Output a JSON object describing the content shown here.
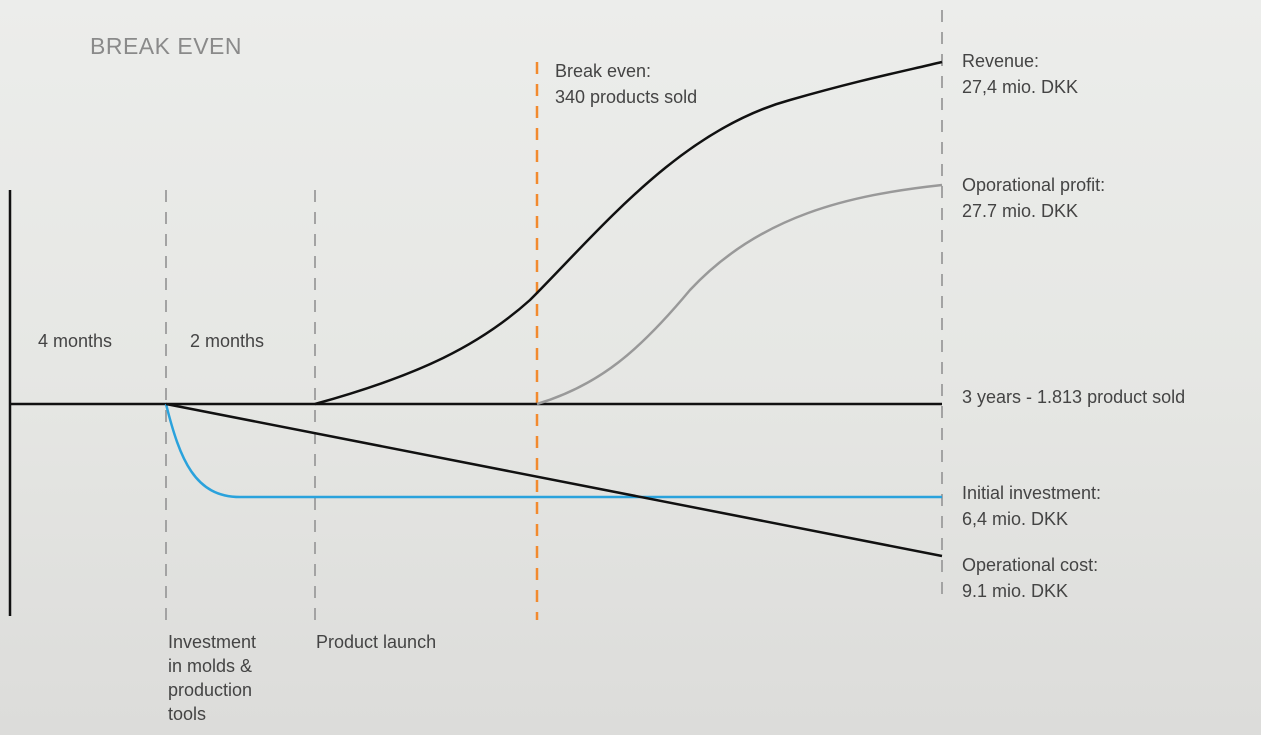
{
  "title": "BREAK EVEN",
  "break_even": {
    "lines": [
      "Break even:",
      "340 products sold"
    ]
  },
  "revenue": {
    "lines": [
      "Revenue:",
      "27,4 mio. DKK"
    ]
  },
  "operational_profit": {
    "lines": [
      "Oporational profit:",
      "27.7 mio. DKK"
    ]
  },
  "phases": [
    "4 months",
    "2 months"
  ],
  "timeline": "3 years - 1.813 product sold",
  "initial_investment": {
    "lines": [
      "Initial investment:",
      "6,4 mio. DKK"
    ]
  },
  "operational_cost": {
    "lines": [
      "Operational cost:",
      "9.1 mio. DKK"
    ]
  },
  "milestones": [
    {
      "lines": [
        "Investment",
        "in molds &",
        "production",
        "tools"
      ]
    },
    {
      "lines": [
        "Product launch"
      ]
    }
  ]
}
